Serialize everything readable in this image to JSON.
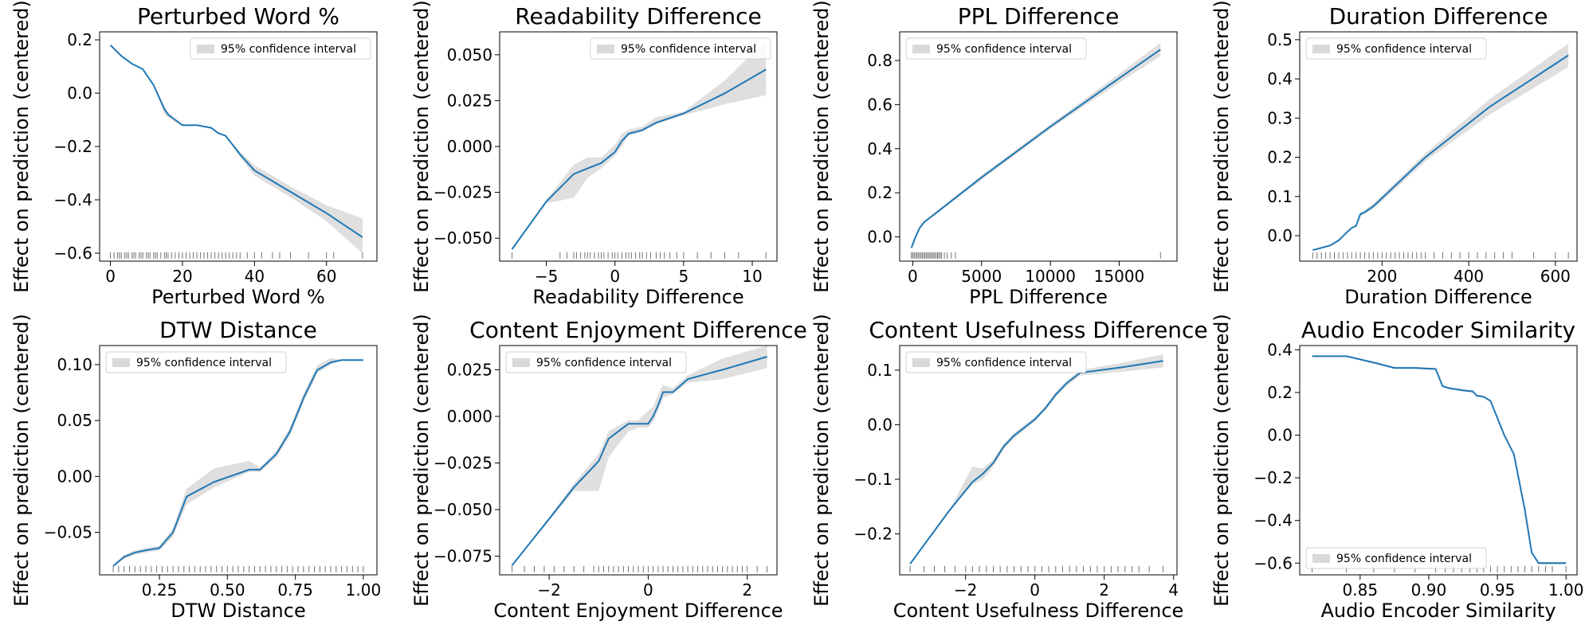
{
  "figure": {
    "legend_text": "95% confidence interval",
    "line_color": "#1f77b4",
    "band_color": "#d9d9d9"
  },
  "chart_data": [
    {
      "type": "line",
      "title": "Perturbed Word %",
      "xlabel": "Perturbed Word %",
      "ylabel": "Effect on prediction (centered)",
      "legend": "upper right",
      "xlim": [
        -3,
        74
      ],
      "ylim": [
        -0.63,
        0.23
      ],
      "xticks": [
        0,
        20,
        40,
        60
      ],
      "xticklabels": [
        "0",
        "20",
        "40",
        "60"
      ],
      "yticks": [
        0.2,
        0.0,
        -0.2,
        -0.4,
        -0.6
      ],
      "yticklabels": [
        "0.2",
        "0.0",
        "−0.2",
        "−0.4",
        "−0.6"
      ],
      "series": [
        {
          "x": [
            0,
            3,
            6,
            9,
            12,
            15,
            16,
            18,
            20,
            24,
            28,
            30,
            32,
            36,
            40,
            50,
            60,
            70
          ],
          "y": [
            0.18,
            0.14,
            0.11,
            0.09,
            0.03,
            -0.06,
            -0.08,
            -0.1,
            -0.12,
            -0.12,
            -0.13,
            -0.15,
            -0.16,
            -0.23,
            -0.29,
            -0.37,
            -0.45,
            -0.54
          ],
          "lower": [
            0.18,
            0.14,
            0.11,
            0.09,
            0.03,
            -0.08,
            -0.09,
            -0.11,
            -0.12,
            -0.12,
            -0.13,
            -0.15,
            -0.16,
            -0.24,
            -0.31,
            -0.39,
            -0.48,
            -0.6
          ],
          "upper": [
            0.18,
            0.14,
            0.11,
            0.09,
            0.03,
            -0.05,
            -0.07,
            -0.1,
            -0.12,
            -0.12,
            -0.13,
            -0.15,
            -0.16,
            -0.22,
            -0.27,
            -0.35,
            -0.42,
            -0.47
          ]
        }
      ],
      "rug": [
        0,
        1,
        2,
        2.5,
        3,
        4,
        4.5,
        5,
        6,
        6.5,
        7,
        8,
        8.5,
        9,
        10,
        10.5,
        11,
        12,
        12.5,
        13,
        14,
        15,
        15.5,
        16,
        17,
        18,
        19,
        20,
        21,
        22,
        23,
        24,
        25,
        26,
        27,
        28,
        29,
        30,
        31,
        32,
        33,
        34,
        35,
        36,
        38,
        40,
        42,
        45,
        47,
        50,
        55,
        60,
        62,
        70
      ]
    },
    {
      "type": "line",
      "title": "Readability Difference",
      "xlabel": "Readability Difference",
      "ylabel": "Effect on prediction (centered)",
      "legend": "upper right",
      "xlim": [
        -8.4,
        11.8
      ],
      "ylim": [
        -0.0625,
        0.0625
      ],
      "xticks": [
        -5,
        0,
        5,
        10
      ],
      "xticklabels": [
        "−5",
        "0",
        "5",
        "10"
      ],
      "yticks": [
        0.05,
        0.025,
        0.0,
        -0.025,
        -0.05
      ],
      "yticklabels": [
        "0.050",
        "0.025",
        "0.000",
        "−0.025",
        "−0.050"
      ],
      "series": [
        {
          "x": [
            -7.5,
            -5,
            -3,
            -2,
            -1,
            0,
            0.5,
            1,
            2,
            3,
            5,
            8,
            11
          ],
          "y": [
            -0.056,
            -0.03,
            -0.015,
            -0.012,
            -0.009,
            -0.003,
            0.003,
            0.007,
            0.009,
            0.013,
            0.018,
            0.029,
            0.042
          ],
          "lower": [
            -0.056,
            -0.031,
            -0.028,
            -0.017,
            -0.012,
            -0.005,
            0.0,
            0.006,
            0.008,
            0.012,
            0.017,
            0.023,
            0.028
          ],
          "upper": [
            -0.056,
            -0.029,
            -0.01,
            -0.006,
            -0.006,
            0.001,
            0.007,
            0.009,
            0.011,
            0.016,
            0.019,
            0.036,
            0.058
          ]
        }
      ],
      "rug": [
        -7.5,
        -4,
        -3.5,
        -3,
        -2.8,
        -2.5,
        -2.2,
        -2,
        -1.8,
        -1.5,
        -1.2,
        -1,
        -0.8,
        -0.5,
        -0.2,
        0,
        0.2,
        0.5,
        0.8,
        1,
        1.2,
        1.5,
        1.8,
        2,
        2.3,
        2.6,
        3,
        3.3,
        3.6,
        4,
        4.5,
        5,
        6,
        7,
        8,
        9,
        11
      ]
    },
    {
      "type": "line",
      "title": "PPL Difference",
      "xlabel": "PPL Difference",
      "ylabel": "Effect on prediction (centered)",
      "legend": "upper left",
      "xlim": [
        -950,
        19200
      ],
      "ylim": [
        -0.11,
        0.93
      ],
      "xticks": [
        0,
        5000,
        10000,
        15000
      ],
      "xticklabels": [
        "0",
        "5000",
        "10000",
        "15000"
      ],
      "yticks": [
        0.8,
        0.6,
        0.4,
        0.2,
        0.0
      ],
      "yticklabels": [
        "0.8",
        "0.6",
        "0.4",
        "0.2",
        "0.0"
      ],
      "series": [
        {
          "x": [
            -100,
            200,
            500,
            800,
            5000,
            10000,
            15000,
            18000
          ],
          "y": [
            -0.05,
            0.0,
            0.04,
            0.065,
            0.27,
            0.5,
            0.72,
            0.85
          ],
          "lower": [
            -0.05,
            0.0,
            0.04,
            0.06,
            0.26,
            0.49,
            0.7,
            0.82
          ],
          "upper": [
            -0.05,
            0.0,
            0.04,
            0.07,
            0.28,
            0.51,
            0.74,
            0.88
          ]
        }
      ],
      "rug": [
        -100,
        0,
        100,
        200,
        300,
        400,
        500,
        600,
        700,
        800,
        900,
        1000,
        1100,
        1200,
        1300,
        1400,
        1500,
        1600,
        1700,
        1800,
        1900,
        2000,
        2100,
        2300,
        2500,
        2800,
        3100,
        18000
      ]
    },
    {
      "type": "line",
      "title": "Duration Difference",
      "xlabel": "Duration Difference",
      "ylabel": "Effect on prediction (centered)",
      "legend": "upper left",
      "xlim": [
        10,
        650
      ],
      "ylim": [
        -0.065,
        0.52
      ],
      "xticks": [
        200,
        400,
        600
      ],
      "xticklabels": [
        "200",
        "400",
        "600"
      ],
      "yticks": [
        0.5,
        0.4,
        0.3,
        0.2,
        0.1,
        0.0
      ],
      "yticklabels": [
        "0.5",
        "0.4",
        "0.3",
        "0.2",
        "0.1",
        "0.0"
      ],
      "series": [
        {
          "x": [
            40,
            80,
            100,
            120,
            130,
            140,
            150,
            160,
            180,
            300,
            450,
            630
          ],
          "y": [
            -0.037,
            -0.025,
            -0.012,
            0.01,
            0.02,
            0.025,
            0.055,
            0.06,
            0.075,
            0.2,
            0.33,
            0.46
          ],
          "lower": [
            -0.037,
            -0.025,
            -0.012,
            0.01,
            0.02,
            0.025,
            0.05,
            0.055,
            0.068,
            0.19,
            0.31,
            0.43
          ],
          "upper": [
            -0.037,
            -0.025,
            -0.012,
            0.01,
            0.02,
            0.025,
            0.06,
            0.065,
            0.082,
            0.21,
            0.35,
            0.49
          ]
        }
      ],
      "rug": [
        40,
        50,
        60,
        70,
        80,
        90,
        100,
        110,
        120,
        130,
        140,
        150,
        160,
        170,
        180,
        190,
        200,
        210,
        220,
        230,
        240,
        250,
        260,
        270,
        280,
        290,
        300,
        320,
        340,
        360,
        380,
        400,
        420,
        440,
        460,
        480,
        500,
        550,
        600,
        630
      ]
    },
    {
      "type": "line",
      "title": "DTW Distance",
      "xlabel": "DTW Distance",
      "ylabel": "Effect on prediction (centered)",
      "legend": "upper left",
      "xlim": [
        0.03,
        1.05
      ],
      "ylim": [
        -0.088,
        0.117
      ],
      "xticks": [
        0.25,
        0.5,
        0.75,
        1.0
      ],
      "xticklabels": [
        "0.25",
        "0.50",
        "0.75",
        "1.00"
      ],
      "yticks": [
        0.1,
        0.05,
        0.0,
        -0.05
      ],
      "yticklabels": [
        "0.10",
        "0.05",
        "0.00",
        "−0.05"
      ],
      "series": [
        {
          "x": [
            0.08,
            0.12,
            0.16,
            0.2,
            0.25,
            0.3,
            0.35,
            0.45,
            0.58,
            0.62,
            0.68,
            0.73,
            0.78,
            0.83,
            0.88,
            0.92,
            1.0
          ],
          "y": [
            -0.08,
            -0.072,
            -0.068,
            -0.066,
            -0.064,
            -0.05,
            -0.018,
            -0.005,
            0.006,
            0.006,
            0.02,
            0.04,
            0.07,
            0.095,
            0.102,
            0.104,
            0.104
          ],
          "lower": [
            -0.08,
            -0.074,
            -0.07,
            -0.068,
            -0.066,
            -0.054,
            -0.025,
            -0.01,
            0.004,
            0.004,
            0.017,
            0.036,
            0.066,
            0.092,
            0.1,
            0.104,
            0.104
          ],
          "upper": [
            -0.08,
            -0.07,
            -0.066,
            -0.064,
            -0.062,
            -0.046,
            -0.011,
            0.007,
            0.014,
            0.008,
            0.023,
            0.044,
            0.074,
            0.099,
            0.106,
            0.104,
            0.104
          ]
        }
      ],
      "rug": [
        0.08,
        0.1,
        0.12,
        0.14,
        0.16,
        0.18,
        0.2,
        0.22,
        0.24,
        0.26,
        0.28,
        0.3,
        0.32,
        0.34,
        0.36,
        0.38,
        0.4,
        0.42,
        0.44,
        0.46,
        0.48,
        0.5,
        0.52,
        0.54,
        0.56,
        0.58,
        0.6,
        0.62,
        0.64,
        0.66,
        0.68,
        0.7,
        0.72,
        0.74,
        0.76,
        0.78,
        0.8,
        0.82,
        0.84,
        0.86,
        0.88,
        0.9,
        0.92,
        0.94,
        0.96,
        0.98,
        1.0
      ]
    },
    {
      "type": "line",
      "title": "Content Enjoyment Difference",
      "xlabel": "Content Enjoyment Difference",
      "ylabel": "Effect on prediction (centered)",
      "legend": "upper left",
      "xlim": [
        -3.0,
        2.6
      ],
      "ylim": [
        -0.085,
        0.038
      ],
      "xticks": [
        -2,
        0,
        2
      ],
      "xticklabels": [
        "−2",
        "0",
        "2"
      ],
      "yticks": [
        0.025,
        0.0,
        -0.025,
        -0.05,
        -0.075
      ],
      "yticklabels": [
        "0.025",
        "0.000",
        "−0.025",
        "−0.050",
        "−0.075"
      ],
      "series": [
        {
          "x": [
            -2.75,
            -2,
            -1.5,
            -1,
            -0.8,
            -0.6,
            -0.4,
            -0.2,
            0,
            0.1,
            0.2,
            0.3,
            0.5,
            0.8,
            1.5,
            2.4
          ],
          "y": [
            -0.08,
            -0.055,
            -0.038,
            -0.024,
            -0.012,
            -0.008,
            -0.004,
            -0.004,
            -0.004,
            0.0,
            0.006,
            0.013,
            0.013,
            0.02,
            0.025,
            0.032
          ],
          "lower": [
            -0.08,
            -0.056,
            -0.04,
            -0.04,
            -0.022,
            -0.015,
            -0.008,
            -0.006,
            -0.006,
            -0.003,
            0.003,
            0.01,
            0.012,
            0.018,
            0.02,
            0.026
          ],
          "upper": [
            -0.08,
            -0.054,
            -0.036,
            -0.02,
            -0.008,
            -0.005,
            -0.002,
            -0.002,
            0.003,
            0.005,
            0.012,
            0.017,
            0.015,
            0.022,
            0.031,
            0.038
          ]
        }
      ],
      "rug": [
        -2.75,
        -2.5,
        -2.3,
        -2.1,
        -1.9,
        -1.7,
        -1.5,
        -1.3,
        -1.1,
        -1,
        -0.9,
        -0.8,
        -0.7,
        -0.6,
        -0.5,
        -0.4,
        -0.3,
        -0.2,
        -0.1,
        0,
        0.1,
        0.2,
        0.3,
        0.4,
        0.5,
        0.6,
        0.7,
        0.8,
        0.9,
        1,
        1.1,
        1.2,
        1.3,
        1.4,
        1.5,
        1.6,
        1.7,
        1.8,
        1.9,
        2,
        2.2,
        2.4
      ]
    },
    {
      "type": "line",
      "title": "Content Usefulness Difference",
      "xlabel": "Content Usefulness Difference",
      "ylabel": "Effect on prediction (centered)",
      "legend": "upper left",
      "xlim": [
        -3.9,
        4.1
      ],
      "ylim": [
        -0.275,
        0.145
      ],
      "xticks": [
        -2,
        0,
        2,
        4
      ],
      "xticklabels": [
        "−2",
        "0",
        "2",
        "4"
      ],
      "yticks": [
        0.1,
        0.0,
        -0.1,
        -0.2
      ],
      "yticklabels": [
        "0.1",
        "0.0",
        "−0.1",
        "−0.2"
      ],
      "series": [
        {
          "x": [
            -3.6,
            -2.5,
            -1.8,
            -1.5,
            -1.2,
            -0.9,
            -0.6,
            -0.3,
            0,
            0.3,
            0.6,
            0.9,
            1.3,
            2.5,
            3.7
          ],
          "y": [
            -0.255,
            -0.16,
            -0.105,
            -0.09,
            -0.07,
            -0.04,
            -0.02,
            -0.005,
            0.01,
            0.03,
            0.055,
            0.075,
            0.095,
            0.105,
            0.117
          ],
          "lower": [
            -0.255,
            -0.16,
            -0.11,
            -0.1,
            -0.077,
            -0.045,
            -0.025,
            -0.01,
            0.006,
            0.026,
            0.05,
            0.07,
            0.09,
            0.097,
            0.105
          ],
          "upper": [
            -0.255,
            -0.16,
            -0.077,
            -0.08,
            -0.063,
            -0.035,
            -0.015,
            0.0,
            0.014,
            0.034,
            0.06,
            0.08,
            0.1,
            0.113,
            0.129
          ]
        }
      ],
      "rug": [
        -3.6,
        -3.2,
        -2.9,
        -2.6,
        -2.3,
        -2.0,
        -1.8,
        -1.6,
        -1.4,
        -1.2,
        -1.0,
        -0.8,
        -0.6,
        -0.4,
        -0.2,
        0,
        0.2,
        0.4,
        0.6,
        0.8,
        1.0,
        1.2,
        1.4,
        1.6,
        1.8,
        2.0,
        2.2,
        2.4,
        2.6,
        2.8,
        3.0,
        3.3,
        3.7
      ]
    },
    {
      "type": "line",
      "title": "Audio Encoder Similarity",
      "xlabel": "Audio Encoder Similarity",
      "ylabel": "Effect on prediction (centered)",
      "legend": "lower left",
      "xlim": [
        0.806,
        1.008
      ],
      "ylim": [
        -0.655,
        0.42
      ],
      "xticks": [
        0.85,
        0.9,
        0.95,
        1.0
      ],
      "xticklabels": [
        "0.85",
        "0.90",
        "0.95",
        "1.00"
      ],
      "yticks": [
        0.4,
        0.2,
        0.0,
        -0.2,
        -0.4,
        -0.6
      ],
      "yticklabels": [
        "0.4",
        "0.2",
        "0.0",
        "−0.2",
        "−0.4",
        "−0.6"
      ],
      "series": [
        {
          "x": [
            0.815,
            0.84,
            0.86,
            0.875,
            0.89,
            0.905,
            0.91,
            0.915,
            0.925,
            0.932,
            0.935,
            0.94,
            0.945,
            0.95,
            0.955,
            0.962,
            0.97,
            0.975,
            0.98,
            0.99,
            1.0
          ],
          "y": [
            0.37,
            0.37,
            0.34,
            0.315,
            0.315,
            0.31,
            0.23,
            0.22,
            0.21,
            0.205,
            0.185,
            0.18,
            0.16,
            0.08,
            0.0,
            -0.09,
            -0.35,
            -0.55,
            -0.6,
            -0.6,
            -0.6
          ],
          "lower": [
            0.37,
            0.37,
            0.335,
            0.31,
            0.31,
            0.305,
            0.225,
            0.215,
            0.205,
            0.2,
            0.18,
            0.175,
            0.155,
            0.075,
            -0.005,
            -0.095,
            -0.355,
            -0.555,
            -0.605,
            -0.605,
            -0.605
          ],
          "upper": [
            0.37,
            0.37,
            0.345,
            0.32,
            0.32,
            0.315,
            0.235,
            0.225,
            0.215,
            0.21,
            0.19,
            0.185,
            0.165,
            0.085,
            0.005,
            -0.085,
            -0.345,
            -0.545,
            -0.595,
            -0.595,
            -0.595
          ]
        }
      ],
      "rug": [
        0.815,
        0.84,
        0.86,
        0.875,
        0.89,
        0.905,
        0.912,
        0.918,
        0.924,
        0.93,
        0.935,
        0.94,
        0.945,
        0.95,
        0.955,
        0.96,
        0.965,
        0.97,
        0.975,
        0.98,
        0.985,
        0.99,
        1.0
      ]
    }
  ]
}
